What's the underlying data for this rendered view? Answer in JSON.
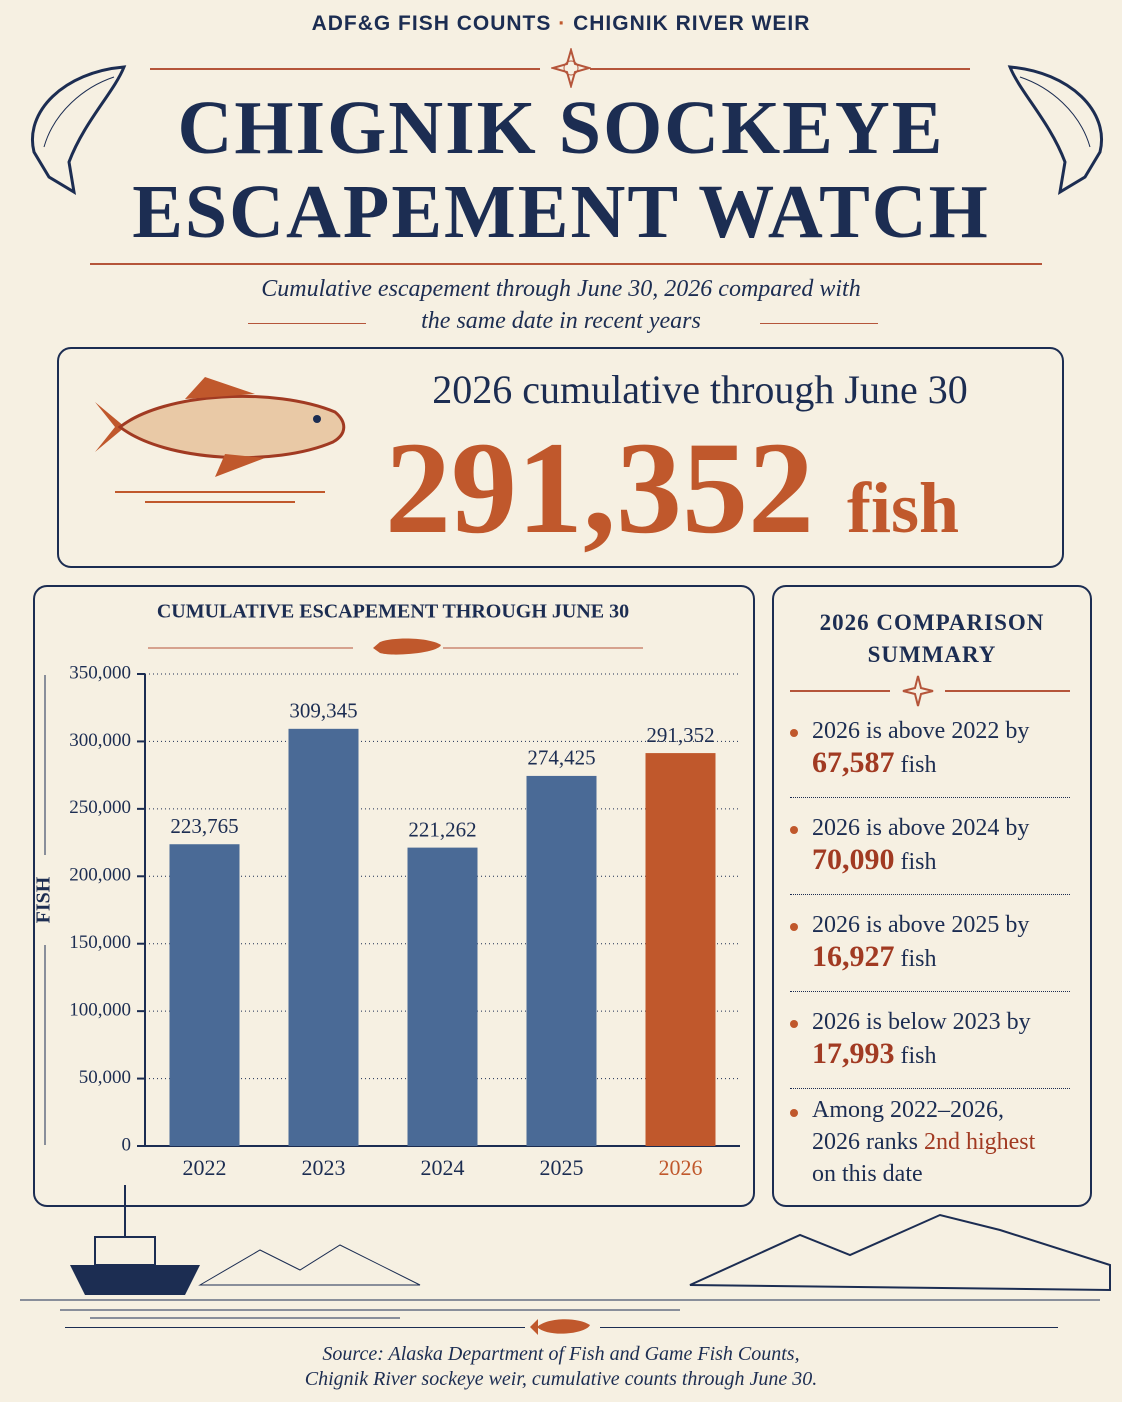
{
  "header": {
    "kicker_left": "ADF&G FISH COUNTS",
    "kicker_right": "CHIGNIK RIVER WEIR",
    "title_line1": "CHIGNIK SOCKEYE",
    "title_line2": "ESCAPEMENT WATCH",
    "subtitle_line1": "Cumulative escapement through June 30, 2026 compared with",
    "subtitle_line2": "the same date in recent years"
  },
  "hero": {
    "label": "2026 cumulative through June 30",
    "value": "291,352",
    "unit": "fish"
  },
  "chart_data": {
    "type": "bar",
    "title": "CUMULATIVE ESCAPEMENT THROUGH JUNE 30",
    "y_label": "FISH",
    "categories": [
      "2022",
      "2023",
      "2024",
      "2025",
      "2026"
    ],
    "values": [
      223765,
      309345,
      221262,
      274425,
      291352
    ],
    "value_labels": [
      "223,765",
      "309,345",
      "221,262",
      "274,425",
      "291,352"
    ],
    "colors": [
      "#4a6a96",
      "#4a6a96",
      "#4a6a96",
      "#4a6a96",
      "#c0582c"
    ],
    "ylim": [
      0,
      350000
    ],
    "yticks": [
      {
        "value": 0,
        "label": "0"
      },
      {
        "value": 50000,
        "label": "50,000"
      },
      {
        "value": 100000,
        "label": "100,000"
      },
      {
        "value": 150000,
        "label": "150,000"
      },
      {
        "value": 200000,
        "label": "200,000"
      },
      {
        "value": 250000,
        "label": "250,000"
      },
      {
        "value": 300000,
        "label": "300,000"
      },
      {
        "value": 350000,
        "label": "350,000"
      }
    ],
    "grid": true
  },
  "summary": {
    "title_line1": "2026 COMPARISON",
    "title_line2": "SUMMARY",
    "items": [
      {
        "lead": "2026 is above 2022 by",
        "amount": "67,587",
        "unit": "fish"
      },
      {
        "lead": "2026 is above 2024 by",
        "amount": "70,090",
        "unit": "fish"
      },
      {
        "lead": "2026 is above 2025 by",
        "amount": "16,927",
        "unit": "fish"
      },
      {
        "lead": "2026 is below 2023 by",
        "amount": "17,993",
        "unit": "fish"
      }
    ],
    "ranking": {
      "lead_line1": "Among 2022–2026,",
      "lead_line2": "2026 ranks",
      "highlight": "2nd highest",
      "tail": "on this date"
    }
  },
  "source": {
    "line1": "Source:  Alaska Department of Fish and Game Fish Counts,",
    "line2": "Chignik River sockeye weir, cumulative counts through June 30."
  }
}
